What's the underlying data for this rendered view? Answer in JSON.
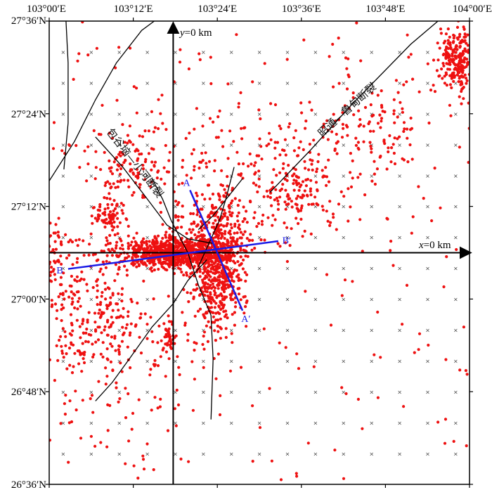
{
  "map": {
    "frame": {
      "lon_min": 103.0,
      "lon_max": 104.0,
      "lat_min": 26.6,
      "lat_max": 27.6
    },
    "lon_ticks": [
      {
        "label": "103°00′E",
        "lon": 103.0
      },
      {
        "label": "103°12′E",
        "lon": 103.2
      },
      {
        "label": "103°24′E",
        "lon": 103.4
      },
      {
        "label": "103°36′E",
        "lon": 103.6
      },
      {
        "label": "103°48′E",
        "lon": 103.8
      },
      {
        "label": "104°00′E",
        "lon": 104.0
      }
    ],
    "lat_ticks": [
      {
        "label": "27°36′N",
        "lat": 27.6
      },
      {
        "label": "27°24′N",
        "lat": 27.4
      },
      {
        "label": "27°12′N",
        "lat": 27.2
      },
      {
        "label": "27°00′N",
        "lat": 27.0
      },
      {
        "label": "26°48′N",
        "lat": 26.8
      },
      {
        "label": "26°36′N",
        "lat": 26.6
      }
    ],
    "origin": {
      "lon": 103.295,
      "lat": 27.1
    },
    "x_axis": {
      "var": "x",
      "text": "=0 km"
    },
    "y_axis": {
      "var": "y",
      "text": "=0 km"
    },
    "grid_marker": "×",
    "colors": {
      "events": "#ee1111",
      "profiles": "#1a1ae6",
      "faults": "#000000",
      "frame": "#000000"
    }
  },
  "faults": [
    {
      "label": "包谷垴—小河断裂",
      "points": [
        [
          103.11,
          27.35
        ],
        [
          103.175,
          27.285
        ],
        [
          103.23,
          27.22
        ],
        [
          103.28,
          27.16
        ],
        [
          103.33,
          27.13
        ],
        [
          103.39,
          27.12
        ]
      ]
    },
    {
      "label": "昭通—鲁甸断裂",
      "points": [
        [
          103.525,
          27.23
        ],
        [
          103.62,
          27.32
        ],
        [
          103.72,
          27.42
        ],
        [
          103.86,
          27.55
        ],
        [
          103.925,
          27.6
        ]
      ]
    },
    {
      "label": "",
      "points": [
        [
          103.04,
          27.6
        ],
        [
          103.045,
          27.51
        ],
        [
          103.045,
          27.38
        ],
        [
          103.035,
          27.28
        ]
      ]
    },
    {
      "label": "",
      "points": [
        [
          103.0,
          27.255
        ],
        [
          103.06,
          27.34
        ],
        [
          103.11,
          27.43
        ],
        [
          103.16,
          27.51
        ],
        [
          103.22,
          27.58
        ],
        [
          103.25,
          27.6
        ]
      ]
    },
    {
      "label": "",
      "points": [
        [
          103.245,
          27.26
        ],
        [
          103.27,
          27.215
        ],
        [
          103.29,
          27.17
        ],
        [
          103.33,
          27.1
        ],
        [
          103.355,
          27.03
        ],
        [
          103.385,
          26.965
        ],
        [
          103.39,
          26.87
        ],
        [
          103.385,
          26.74
        ]
      ]
    },
    {
      "label": "",
      "points": [
        [
          103.355,
          27.07
        ],
        [
          103.38,
          27.12
        ],
        [
          103.405,
          27.17
        ],
        [
          103.42,
          27.215
        ],
        [
          103.44,
          27.285
        ]
      ]
    },
    {
      "label": "",
      "points": [
        [
          103.355,
          27.15
        ],
        [
          103.39,
          27.18
        ],
        [
          103.425,
          27.22
        ],
        [
          103.46,
          27.26
        ]
      ]
    },
    {
      "label": "",
      "points": [
        [
          103.375,
          27.085
        ],
        [
          103.33,
          27.04
        ],
        [
          103.295,
          26.99
        ],
        [
          103.245,
          26.94
        ],
        [
          103.19,
          26.87
        ],
        [
          103.15,
          26.82
        ],
        [
          103.11,
          26.78
        ]
      ]
    }
  ],
  "profiles": [
    {
      "start_label": "A",
      "end_label": "A′",
      "start": [
        103.335,
        27.235
      ],
      "end": [
        103.46,
        26.975
      ]
    },
    {
      "start_label": "B",
      "end_label": "B′",
      "start": [
        103.045,
        27.065
      ],
      "end": [
        103.545,
        27.125
      ]
    }
  ],
  "seismicity": {
    "clusters": [
      {
        "lon": 103.3,
        "lat": 27.1,
        "sdx": 0.07,
        "sdy": 0.018,
        "n": 850
      },
      {
        "lon": 103.4,
        "lat": 27.05,
        "sdx": 0.03,
        "sdy": 0.06,
        "n": 450
      },
      {
        "lon": 103.4,
        "lat": 27.15,
        "sdx": 0.05,
        "sdy": 0.04,
        "n": 200
      },
      {
        "lon": 103.97,
        "lat": 27.52,
        "sdx": 0.022,
        "sdy": 0.035,
        "n": 240
      },
      {
        "lon": 103.14,
        "lat": 27.175,
        "sdx": 0.02,
        "sdy": 0.02,
        "n": 70
      },
      {
        "lon": 103.285,
        "lat": 26.92,
        "sdx": 0.008,
        "sdy": 0.02,
        "n": 40
      },
      {
        "lon": 103.6,
        "lat": 27.24,
        "sdx": 0.06,
        "sdy": 0.05,
        "n": 160
      },
      {
        "lon": 103.75,
        "lat": 27.38,
        "sdx": 0.08,
        "sdy": 0.07,
        "n": 120
      },
      {
        "lon": 103.2,
        "lat": 27.28,
        "sdx": 0.06,
        "sdy": 0.05,
        "n": 140
      },
      {
        "lon": 103.1,
        "lat": 26.98,
        "sdx": 0.06,
        "sdy": 0.08,
        "n": 200
      },
      {
        "lon": 103.0,
        "lat": 27.08,
        "sdx": 0.025,
        "sdy": 0.045,
        "n": 90
      },
      {
        "lon": 103.2,
        "lat": 26.9,
        "sdx": 0.1,
        "sdy": 0.1,
        "n": 120
      },
      {
        "lon": 103.45,
        "lat": 27.3,
        "sdx": 0.08,
        "sdy": 0.08,
        "n": 90
      }
    ],
    "uniform_count": 220
  }
}
